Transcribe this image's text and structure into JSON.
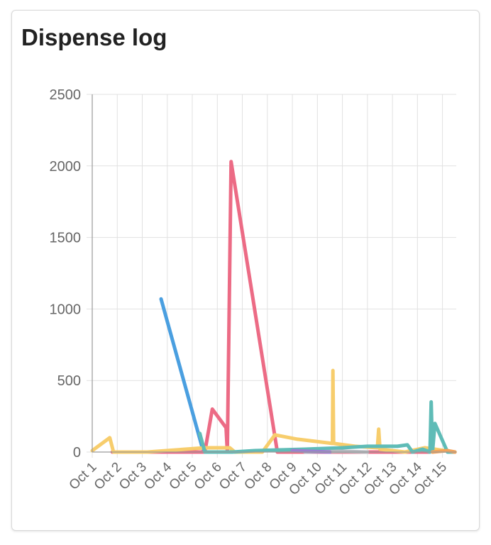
{
  "card": {
    "title": "Dispense log"
  },
  "chart_data": {
    "type": "line",
    "title": "Dispense log",
    "categories": [
      "Oct 1",
      "Oct 2",
      "Oct 3",
      "Oct 4",
      "Oct 5",
      "Oct 6",
      "Oct 7",
      "Oct 8",
      "Oct 9",
      "Oct 10",
      "Oct 11",
      "Oct 12",
      "Oct 13",
      "Oct 14",
      "Oct 15"
    ],
    "ylim": [
      0,
      2500
    ],
    "yticks": [
      0,
      500,
      1000,
      1500,
      2000,
      2500
    ],
    "grid": true,
    "series": [
      {
        "color": "#4a9fe0",
        "points": [
          [
            3.75,
            1070
          ],
          [
            5.4,
            30
          ],
          [
            5.5,
            0
          ],
          [
            6.3,
            0
          ]
        ]
      },
      {
        "color": "#ec6b85",
        "points": [
          [
            1.8,
            0
          ],
          [
            5.5,
            0
          ],
          [
            5.8,
            300
          ],
          [
            6.35,
            170
          ],
          [
            6.4,
            0
          ],
          [
            6.55,
            2030
          ],
          [
            8.4,
            0
          ],
          [
            9.0,
            0
          ],
          [
            14.5,
            0
          ]
        ]
      },
      {
        "color": "#f7cd6c",
        "points": [
          [
            1.0,
            10
          ],
          [
            1.7,
            100
          ],
          [
            1.85,
            0
          ],
          [
            3.2,
            0
          ],
          [
            5.5,
            30
          ],
          [
            6.5,
            30
          ],
          [
            6.7,
            0
          ],
          [
            7.8,
            0
          ],
          [
            8.3,
            120
          ],
          [
            9.2,
            90
          ],
          [
            10.6,
            60
          ],
          [
            10.62,
            570
          ],
          [
            10.65,
            60
          ],
          [
            11.5,
            40
          ],
          [
            12.4,
            30
          ],
          [
            12.45,
            160
          ],
          [
            12.5,
            20
          ],
          [
            13.5,
            0
          ],
          [
            14.3,
            30
          ],
          [
            15.5,
            0
          ]
        ]
      },
      {
        "color": "#5fbcb7",
        "points": [
          [
            5.3,
            130
          ],
          [
            5.5,
            0
          ],
          [
            6.6,
            0
          ],
          [
            7.5,
            10
          ],
          [
            9.5,
            20
          ],
          [
            11.0,
            30
          ],
          [
            12.0,
            40
          ],
          [
            13.2,
            40
          ],
          [
            13.6,
            50
          ],
          [
            13.8,
            0
          ],
          [
            14.2,
            20
          ],
          [
            14.5,
            0
          ],
          [
            14.55,
            350
          ],
          [
            14.6,
            0
          ],
          [
            14.7,
            200
          ],
          [
            15.2,
            0
          ],
          [
            15.5,
            0
          ]
        ]
      },
      {
        "color": "#b6b9bf",
        "points": [
          [
            9.5,
            0
          ],
          [
            11.0,
            5
          ],
          [
            12.0,
            0
          ]
        ]
      },
      {
        "color": "#9b7fd0",
        "points": [
          [
            9.0,
            10
          ],
          [
            10.5,
            0
          ]
        ]
      },
      {
        "color": "#f4a35a",
        "points": [
          [
            14.6,
            0
          ],
          [
            15.2,
            10
          ],
          [
            15.5,
            0
          ]
        ]
      }
    ]
  }
}
